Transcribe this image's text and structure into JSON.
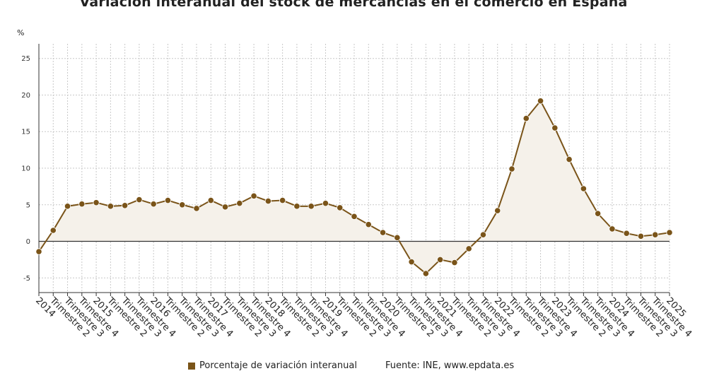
{
  "colors": {
    "line": "#7a5419",
    "area": "#f5f1ea",
    "zero": "#333333",
    "grid": "#c8c8c8"
  },
  "chart_data": {
    "type": "line",
    "title": "Variación interanual del stock de mercancías en el comercio en España",
    "ylabel": "%",
    "ylim": [
      -7,
      27
    ],
    "yticks": [
      -5,
      0,
      5,
      10,
      15,
      20,
      25
    ],
    "grid": true,
    "legend_position": "bottom",
    "categories": [
      "2014",
      "Trimestre 2",
      "Trimestre 3",
      "Trimestre 4",
      "2015",
      "Trimestre 2",
      "Trimestre 3",
      "Trimestre 4",
      "2016",
      "Trimestre 2",
      "Trimestre 3",
      "Trimestre 4",
      "2017",
      "Trimestre 2",
      "Trimestre 3",
      "Trimestre 4",
      "2018",
      "Trimestre 2",
      "Trimestre 3",
      "Trimestre 4",
      "2019",
      "Trimestre 2",
      "Trimestre 3",
      "Trimestre 4",
      "2020",
      "Trimestre 2",
      "Trimestre 3",
      "Trimestre 4",
      "2021",
      "Trimestre 2",
      "Trimestre 3",
      "Trimestre 4",
      "2022",
      "Trimestre 2",
      "Trimestre 3",
      "Trimestre 4",
      "2023",
      "Trimestre 2",
      "Trimestre 3",
      "Trimestre 4",
      "2024",
      "Trimestre 2",
      "Trimestre 3",
      "Trimestre 4",
      "2025"
    ],
    "series": [
      {
        "name": "Porcentaje de variación interanual",
        "values": [
          -1.4,
          1.5,
          4.8,
          5.1,
          5.3,
          4.8,
          4.9,
          5.7,
          5.1,
          5.6,
          5.0,
          4.5,
          5.6,
          4.7,
          5.2,
          6.2,
          5.5,
          5.6,
          4.8,
          4.8,
          5.2,
          4.6,
          3.4,
          2.3,
          1.2,
          0.5,
          -2.8,
          -4.4,
          -2.5,
          -2.9,
          -1.0,
          0.9,
          4.2,
          9.9,
          16.8,
          19.2,
          15.5,
          11.2,
          7.2,
          3.8,
          1.7,
          1.1,
          0.7,
          0.9,
          1.2
        ]
      }
    ]
  },
  "footer": {
    "legend_label": "Porcentaje de variación interanual",
    "source": "Fuente: INE, www.epdata.es"
  }
}
